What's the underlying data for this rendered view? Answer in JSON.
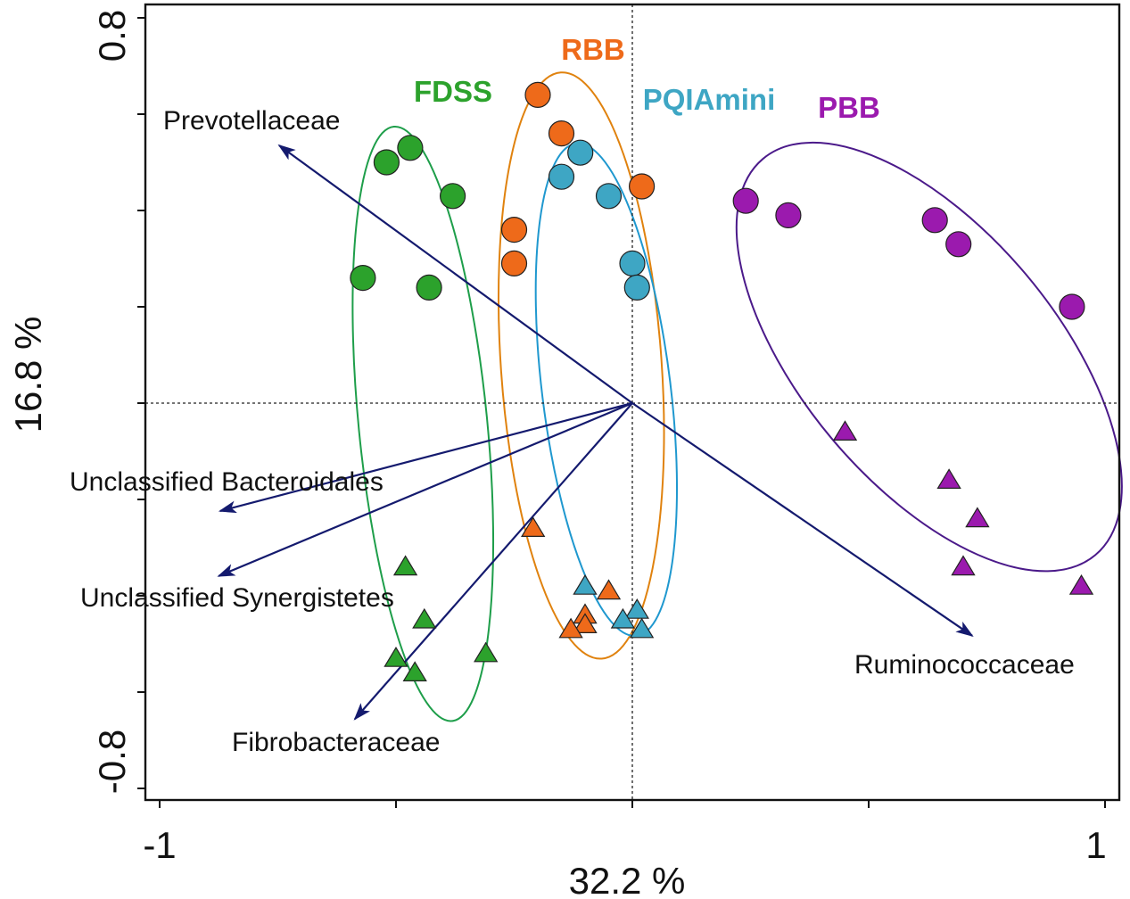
{
  "chart_data": {
    "type": "scatter",
    "subtype": "PCA biplot",
    "xlabel": "32.2 %",
    "ylabel": "16.8 %",
    "xlim": [
      -1,
      1
    ],
    "ylim": [
      -0.8,
      0.8
    ],
    "x_tick_labels": [
      "-1",
      "1"
    ],
    "x_ticks": [
      -1,
      -0.5,
      0,
      0.5,
      1
    ],
    "y_tick_labels": [
      "0.8",
      "-0.8"
    ],
    "y_ticks": [
      0.8,
      0.6,
      0.4,
      0.2,
      0,
      -0.2,
      -0.4,
      -0.6,
      -0.8
    ],
    "grid": false,
    "reference_lines": {
      "x": 0,
      "y": 0
    },
    "groups": [
      {
        "name": "FDSS",
        "color": "#2ca22c",
        "ellipse_color": "#1e9e4a",
        "ellipse": {
          "cx": -0.443,
          "cy": -0.043,
          "rx": 0.136,
          "ry": 0.62,
          "angle": -5.6
        },
        "circles": [
          [
            -0.52,
            0.5
          ],
          [
            -0.47,
            0.53
          ],
          [
            -0.38,
            0.43
          ],
          [
            -0.57,
            0.26
          ],
          [
            -0.43,
            0.24
          ]
        ],
        "triangles": [
          [
            -0.48,
            -0.34
          ],
          [
            -0.44,
            -0.45
          ],
          [
            -0.5,
            -0.53
          ],
          [
            -0.46,
            -0.56
          ],
          [
            -0.31,
            -0.52
          ]
        ]
      },
      {
        "name": "RBB",
        "color": "#ee6a1a",
        "ellipse_color": "#e0820e",
        "ellipse": {
          "cx": -0.108,
          "cy": 0.078,
          "rx": 0.17,
          "ry": 0.61,
          "angle": -4
        },
        "circles": [
          [
            -0.2,
            0.64
          ],
          [
            -0.15,
            0.56
          ],
          [
            -0.25,
            0.36
          ],
          [
            -0.25,
            0.29
          ],
          [
            0.02,
            0.45
          ]
        ],
        "triangles": [
          [
            -0.21,
            -0.26
          ],
          [
            -0.05,
            -0.39
          ],
          [
            -0.1,
            -0.44
          ],
          [
            -0.1,
            -0.46
          ],
          [
            -0.13,
            -0.47
          ]
        ]
      },
      {
        "name": "PQIAmini",
        "color": "#3ea6c4",
        "ellipse_color": "#1f98cf",
        "ellipse": {
          "cx": -0.055,
          "cy": 0.028,
          "rx": 0.136,
          "ry": 0.515,
          "angle": -7
        },
        "circles": [
          [
            -0.11,
            0.52
          ],
          [
            -0.15,
            0.47
          ],
          [
            -0.05,
            0.43
          ],
          [
            0.0,
            0.29
          ],
          [
            0.01,
            0.24
          ]
        ],
        "triangles": [
          [
            -0.1,
            -0.38
          ],
          [
            0.01,
            -0.43
          ],
          [
            -0.02,
            -0.45
          ],
          [
            0.02,
            -0.47
          ]
        ]
      },
      {
        "name": "PBB",
        "color": "#9b1aae",
        "ellipse_color": "#4b1a8a",
        "ellipse": {
          "cx": 0.628,
          "cy": 0.096,
          "rx": 0.547,
          "ry": 0.264,
          "angle": 50
        },
        "circles": [
          [
            0.24,
            0.42
          ],
          [
            0.33,
            0.39
          ],
          [
            0.64,
            0.38
          ],
          [
            0.69,
            0.33
          ],
          [
            0.93,
            0.2
          ]
        ],
        "triangles": [
          [
            0.45,
            -0.06
          ],
          [
            0.67,
            -0.16
          ],
          [
            0.73,
            -0.24
          ],
          [
            0.7,
            -0.34
          ],
          [
            0.95,
            -0.38
          ]
        ]
      }
    ],
    "arrow_color": "#141a6e",
    "loadings": [
      {
        "name": "Prevotellaceae",
        "x": -0.747,
        "y": 0.535
      },
      {
        "name": "Unclassified Bacteroidales",
        "x": -0.872,
        "y": -0.224
      },
      {
        "name": "Unclassified Synergistetes",
        "x": -0.875,
        "y": -0.359
      },
      {
        "name": "Fibrobacteraceae",
        "x": -0.587,
        "y": -0.656
      },
      {
        "name": "Ruminococcaceae",
        "x": 0.719,
        "y": -0.483
      }
    ]
  }
}
